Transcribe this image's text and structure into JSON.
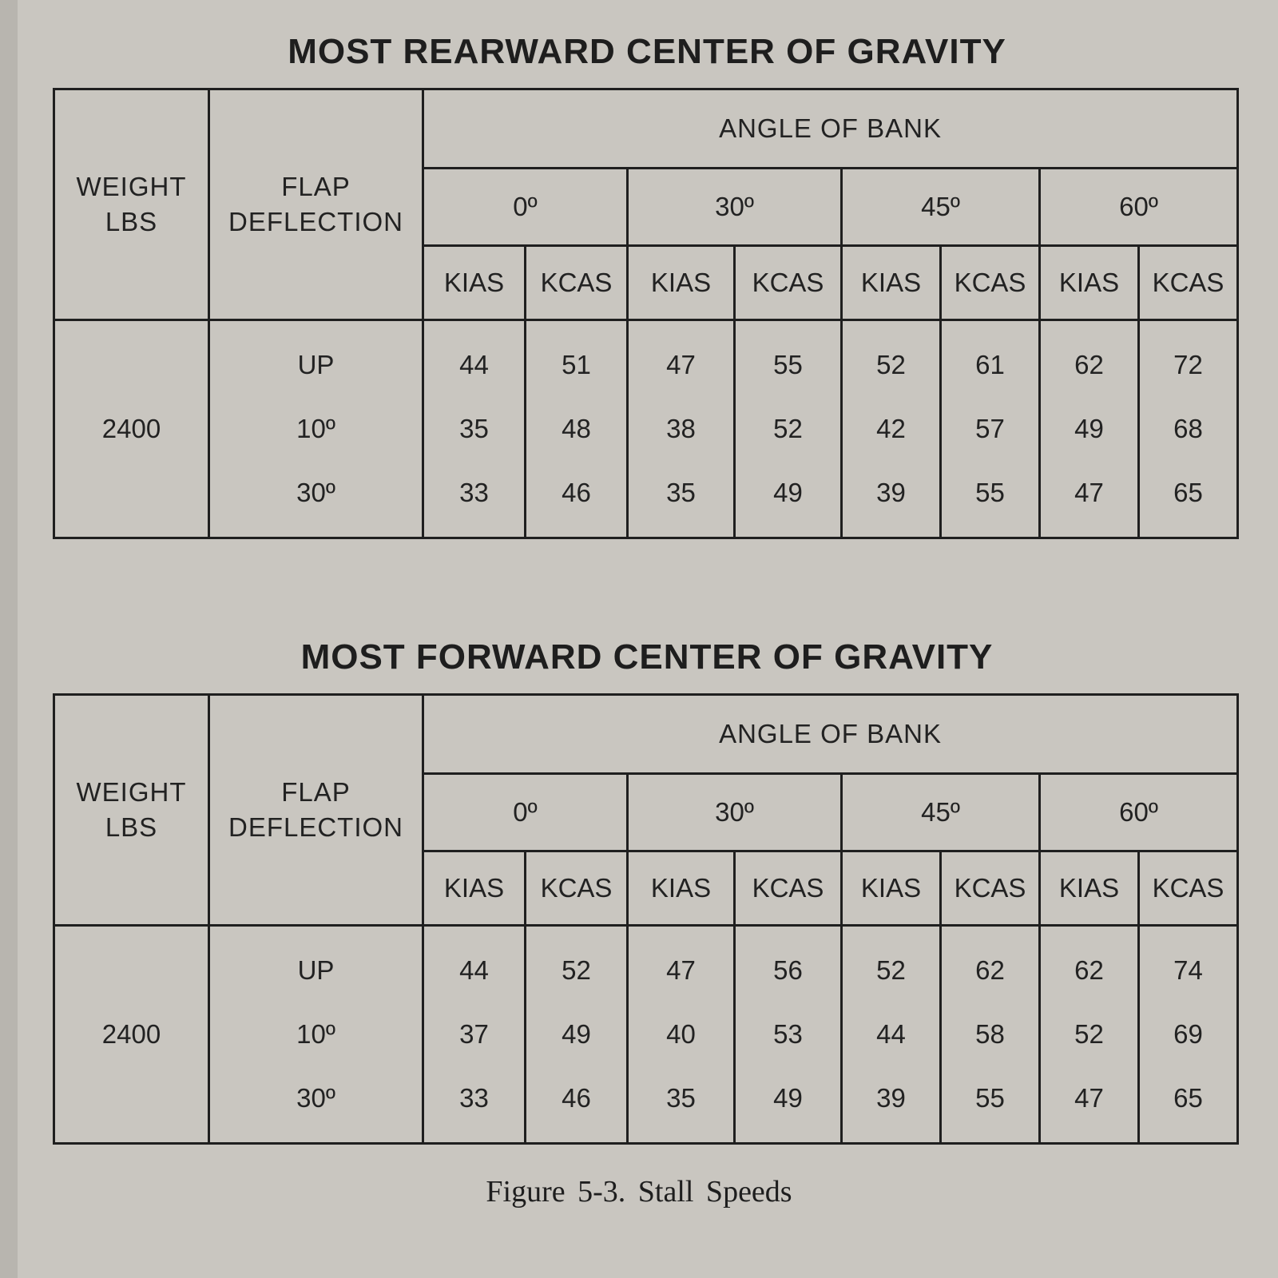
{
  "tables": [
    {
      "title": "MOST REARWARD CENTER OF GRAVITY",
      "headers": {
        "weight": [
          "WEIGHT",
          "LBS"
        ],
        "flap": [
          "FLAP",
          "DEFLECTION"
        ],
        "bank": "ANGLE OF BANK",
        "angles": [
          "0º",
          "30º",
          "45º",
          "60º"
        ],
        "units": [
          "KIAS",
          "KCAS",
          "KIAS",
          "KCAS",
          "KIAS",
          "KCAS",
          "KIAS",
          "KCAS"
        ]
      },
      "weight": "2400",
      "flaps": [
        "UP",
        "10º",
        "30º"
      ],
      "columns": [
        [
          "44",
          "35",
          "33"
        ],
        [
          "51",
          "48",
          "46"
        ],
        [
          "47",
          "38",
          "35"
        ],
        [
          "55",
          "52",
          "49"
        ],
        [
          "52",
          "42",
          "39"
        ],
        [
          "61",
          "57",
          "55"
        ],
        [
          "62",
          "49",
          "47"
        ],
        [
          "72",
          "68",
          "65"
        ]
      ]
    },
    {
      "title": "MOST FORWARD CENTER OF GRAVITY",
      "headers": {
        "weight": [
          "WEIGHT",
          "LBS"
        ],
        "flap": [
          "FLAP",
          "DEFLECTION"
        ],
        "bank": "ANGLE OF BANK",
        "angles": [
          "0º",
          "30º",
          "45º",
          "60º"
        ],
        "units": [
          "KIAS",
          "KCAS",
          "KIAS",
          "KCAS",
          "KIAS",
          "KCAS",
          "KIAS",
          "KCAS"
        ]
      },
      "weight": "2400",
      "flaps": [
        "UP",
        "10º",
        "30º"
      ],
      "columns": [
        [
          "44",
          "37",
          "33"
        ],
        [
          "52",
          "49",
          "46"
        ],
        [
          "47",
          "40",
          "35"
        ],
        [
          "56",
          "53",
          "49"
        ],
        [
          "52",
          "44",
          "39"
        ],
        [
          "62",
          "58",
          "55"
        ],
        [
          "62",
          "52",
          "47"
        ],
        [
          "74",
          "69",
          "65"
        ]
      ]
    }
  ],
  "caption": "Figure 5-3.  Stall Speeds"
}
